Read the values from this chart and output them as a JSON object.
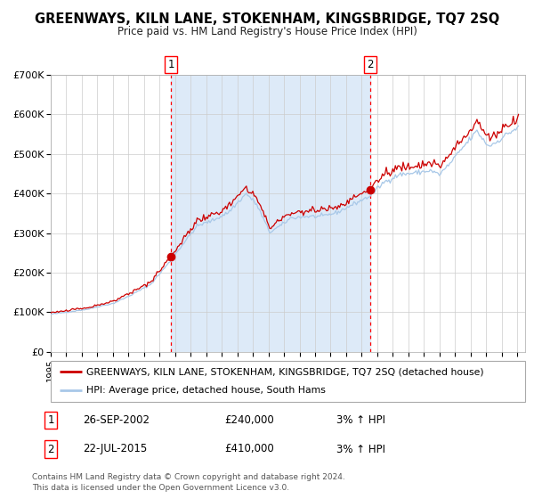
{
  "title": "GREENWAYS, KILN LANE, STOKENHAM, KINGSBRIDGE, TQ7 2SQ",
  "subtitle": "Price paid vs. HM Land Registry's House Price Index (HPI)",
  "xlim_start": 1995.0,
  "xlim_end": 2025.5,
  "ylim_min": 0,
  "ylim_max": 700000,
  "yticks": [
    0,
    100000,
    200000,
    300000,
    400000,
    500000,
    600000,
    700000
  ],
  "ytick_labels": [
    "£0",
    "£100K",
    "£200K",
    "£300K",
    "£400K",
    "£500K",
    "£600K",
    "£700K"
  ],
  "hpi_color": "#a8c8e8",
  "price_color": "#cc0000",
  "sale1_date_float": 2002.73,
  "sale1_price": 240000,
  "sale1_label": "26-SEP-2002",
  "sale2_date_float": 2015.54,
  "sale2_price": 410000,
  "sale2_label": "22-JUL-2015",
  "legend_line1": "GREENWAYS, KILN LANE, STOKENHAM, KINGSBRIDGE, TQ7 2SQ (detached house)",
  "legend_line2": "HPI: Average price, detached house, South Hams",
  "footnote1": "Contains HM Land Registry data © Crown copyright and database right 2024.",
  "footnote2": "This data is licensed under the Open Government Licence v3.0.",
  "bg_fill_color": "#ddeaf8",
  "grid_color": "#cccccc",
  "title_fontsize": 10.5,
  "subtitle_fontsize": 8.5,
  "axis_fontsize": 8,
  "legend_fontsize": 7.8,
  "table_fontsize": 8.5,
  "footnote_fontsize": 6.5
}
